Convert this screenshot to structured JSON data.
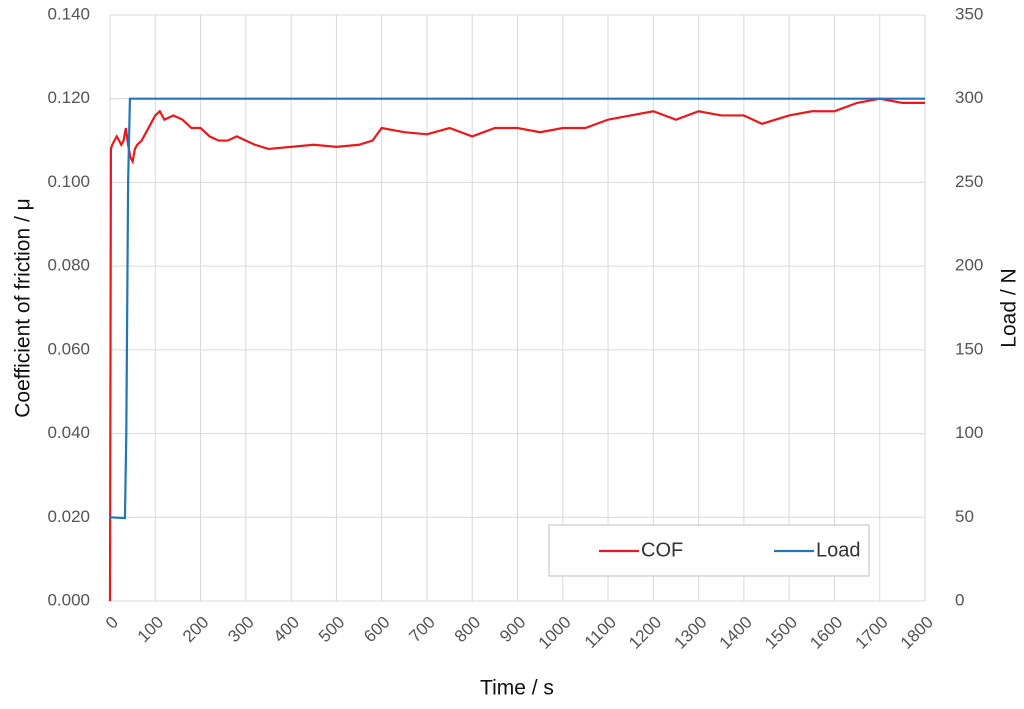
{
  "chart_data": {
    "type": "line",
    "xlabel": "Time / s",
    "ylabel": "Coefficient of friction / μ",
    "y2label": "Load / N",
    "xlim": [
      0,
      1800
    ],
    "xticks": [
      0,
      100,
      200,
      300,
      400,
      500,
      600,
      700,
      800,
      900,
      1000,
      1100,
      1200,
      1300,
      1400,
      1500,
      1600,
      1700,
      1800
    ],
    "ylim": [
      0,
      0.14
    ],
    "yticks": [
      {
        "value": 0,
        "label": "0.000"
      },
      {
        "value": 0.02,
        "label": "0.020"
      },
      {
        "value": 0.04,
        "label": "0.040"
      },
      {
        "value": 0.06,
        "label": "0.060"
      },
      {
        "value": 0.08,
        "label": "0.080"
      },
      {
        "value": 0.1,
        "label": "0.100"
      },
      {
        "value": 0.12,
        "label": "0.120"
      },
      {
        "value": 0.14,
        "label": "0.140"
      }
    ],
    "y2lim": [
      0,
      350
    ],
    "y2ticks": [
      0,
      50,
      100,
      150,
      200,
      250,
      300,
      350
    ],
    "grid": true,
    "legend": "lower right",
    "series": [
      {
        "name": "COF",
        "color": "#e8191c",
        "x": [
          0,
          2,
          5,
          10,
          15,
          20,
          25,
          30,
          35,
          40,
          45,
          50,
          55,
          60,
          70,
          80,
          90,
          100,
          110,
          120,
          140,
          160,
          180,
          200,
          220,
          240,
          260,
          280,
          300,
          320,
          350,
          400,
          450,
          500,
          550,
          580,
          600,
          650,
          700,
          750,
          800,
          850,
          900,
          950,
          1000,
          1050,
          1100,
          1150,
          1200,
          1250,
          1300,
          1350,
          1400,
          1440,
          1500,
          1550,
          1600,
          1650,
          1700,
          1750,
          1800
        ],
        "values": [
          0,
          0.108,
          0.109,
          0.11,
          0.111,
          0.11,
          0.109,
          0.11,
          0.113,
          0.109,
          0.106,
          0.105,
          0.108,
          0.109,
          0.11,
          0.112,
          0.114,
          0.116,
          0.117,
          0.115,
          0.116,
          0.115,
          0.113,
          0.113,
          0.111,
          0.11,
          0.11,
          0.111,
          0.11,
          0.109,
          0.108,
          0.1085,
          0.109,
          0.1085,
          0.109,
          0.11,
          0.113,
          0.112,
          0.1115,
          0.113,
          0.111,
          0.113,
          0.113,
          0.112,
          0.113,
          0.113,
          0.115,
          0.116,
          0.117,
          0.115,
          0.117,
          0.116,
          0.116,
          0.114,
          0.116,
          0.117,
          0.117,
          0.119,
          0.12,
          0.119,
          0.119
        ]
      },
      {
        "name": "Load",
        "color": "#2275b8",
        "axis": "y2",
        "x": [
          0,
          33,
          36,
          40,
          44,
          100,
          300,
          600,
          900,
          1200,
          1500,
          1800
        ],
        "values": [
          50,
          49.5,
          100,
          250,
          300,
          300,
          300,
          300,
          300,
          300,
          300,
          300
        ]
      }
    ]
  }
}
